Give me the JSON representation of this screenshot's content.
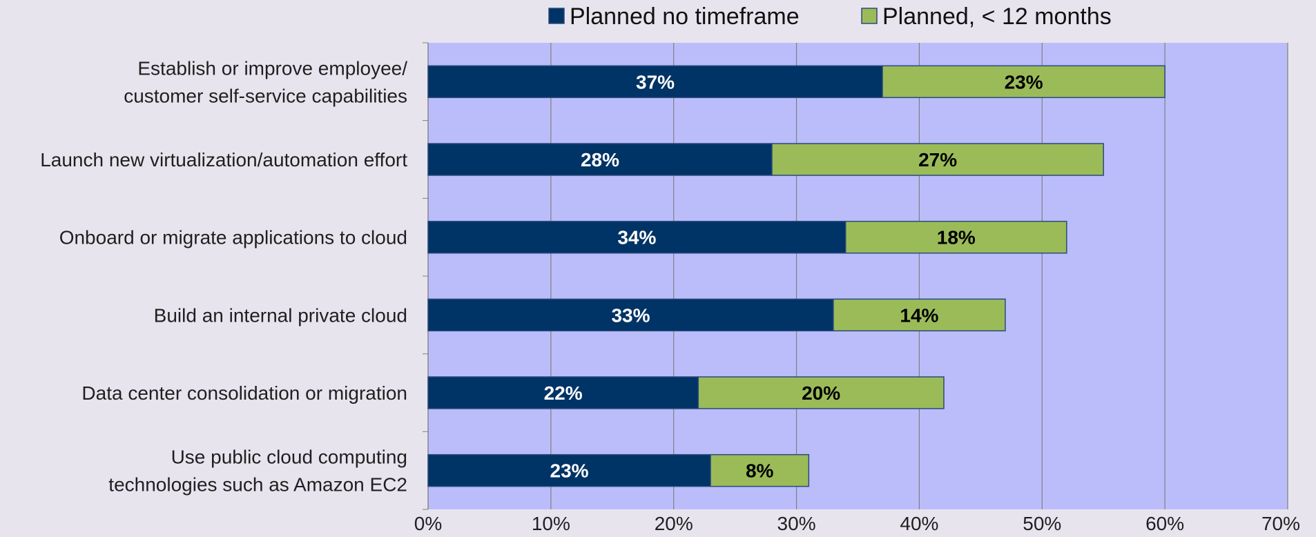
{
  "chart_data": {
    "type": "bar",
    "orientation": "horizontal",
    "stacked": true,
    "categories": [
      [
        "Establish or improve employee/",
        "customer self-service capabilities"
      ],
      [
        "Launch new virtualization/automation effort"
      ],
      [
        "Onboard or migrate applications to cloud"
      ],
      [
        "Build an internal private cloud"
      ],
      [
        "Data center consolidation or migration"
      ],
      [
        "Use public cloud computing",
        "technologies such as Amazon EC2"
      ]
    ],
    "series": [
      {
        "name": "Planned no timeframe",
        "color": "#003366",
        "label_color": "#ffffff",
        "values": [
          37,
          28,
          34,
          33,
          22,
          23
        ],
        "labels": [
          "37%",
          "28%",
          "34%",
          "33%",
          "22%",
          "23%"
        ]
      },
      {
        "name": "Planned, < 12 months",
        "color": "#9bbb59",
        "label_color": "#000000",
        "values": [
          23,
          27,
          18,
          14,
          20,
          8
        ],
        "labels": [
          "23%",
          "27%",
          "18%",
          "14%",
          "20%",
          "8%"
        ]
      }
    ],
    "xlim": [
      0,
      70
    ],
    "xticks": [
      0,
      10,
      20,
      30,
      40,
      50,
      60,
      70
    ],
    "xtick_labels": [
      "0%",
      "10%",
      "20%",
      "30%",
      "40%",
      "50%",
      "60%",
      "70%"
    ],
    "xlabel": "",
    "ylabel": "",
    "title": "",
    "grid": true,
    "legend_position": "top",
    "plot_background": "#bbbdfb",
    "page_background": "#e8e4ee",
    "gridline_color": "#7f7f7f"
  }
}
